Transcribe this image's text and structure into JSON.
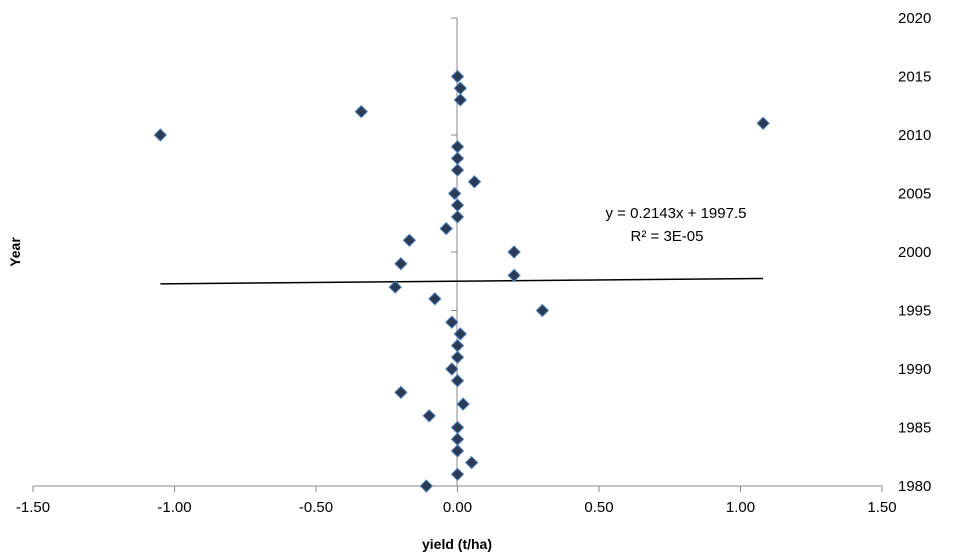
{
  "chart_data": {
    "type": "scatter",
    "title": "",
    "xlabel": "yield (t/ha)",
    "ylabel": "Year",
    "xlim": [
      -1.5,
      1.5
    ],
    "ylim": [
      1980,
      2020
    ],
    "x_ticks": [
      "-1.50",
      "-1.00",
      "-0.50",
      "0.00",
      "0.50",
      "1.00",
      "1.50"
    ],
    "x_tick_values": [
      -1.5,
      -1.0,
      -0.5,
      0.0,
      0.5,
      1.0,
      1.5
    ],
    "y_ticks": [
      "1980",
      "1985",
      "1990",
      "1995",
      "2000",
      "2005",
      "2010",
      "2015",
      "2020"
    ],
    "y_tick_values": [
      1980,
      1985,
      1990,
      1995,
      2000,
      2005,
      2010,
      2015,
      2020
    ],
    "grid": false,
    "marker": "diamond",
    "marker_color": "#2b3a55",
    "marker_edge_color": "#4f81bd",
    "series": [
      {
        "points": [
          {
            "x": -0.11,
            "y": 1980
          },
          {
            "x": 0.0,
            "y": 1981
          },
          {
            "x": 0.05,
            "y": 1982
          },
          {
            "x": 0.0,
            "y": 1983
          },
          {
            "x": 0.0,
            "y": 1984
          },
          {
            "x": 0.0,
            "y": 1985
          },
          {
            "x": -0.1,
            "y": 1986
          },
          {
            "x": 0.02,
            "y": 1987
          },
          {
            "x": -0.2,
            "y": 1988
          },
          {
            "x": 0.0,
            "y": 1989
          },
          {
            "x": -0.02,
            "y": 1990
          },
          {
            "x": 0.0,
            "y": 1991
          },
          {
            "x": 0.0,
            "y": 1992
          },
          {
            "x": 0.01,
            "y": 1993
          },
          {
            "x": -0.02,
            "y": 1994
          },
          {
            "x": 0.3,
            "y": 1995
          },
          {
            "x": -0.08,
            "y": 1996
          },
          {
            "x": -0.22,
            "y": 1997
          },
          {
            "x": 0.2,
            "y": 1998
          },
          {
            "x": -0.2,
            "y": 1999
          },
          {
            "x": 0.2,
            "y": 2000
          },
          {
            "x": -0.17,
            "y": 2001
          },
          {
            "x": -0.04,
            "y": 2002
          },
          {
            "x": 0.0,
            "y": 2003
          },
          {
            "x": 0.0,
            "y": 2004
          },
          {
            "x": -0.01,
            "y": 2005
          },
          {
            "x": 0.06,
            "y": 2006
          },
          {
            "x": 0.0,
            "y": 2007
          },
          {
            "x": 0.0,
            "y": 2008
          },
          {
            "x": 0.0,
            "y": 2009
          },
          {
            "x": -1.05,
            "y": 2010
          },
          {
            "x": 1.08,
            "y": 2011
          },
          {
            "x": -0.34,
            "y": 2012
          },
          {
            "x": 0.01,
            "y": 2013
          },
          {
            "x": 0.01,
            "y": 2014
          },
          {
            "x": 0.0,
            "y": 2015
          }
        ]
      }
    ],
    "trendline": {
      "slope": 0.2143,
      "intercept": 1997.5,
      "x_range": [
        -1.05,
        1.08
      ],
      "color": "#000000",
      "equation": "y = 0.2143x + 1997.5",
      "r_squared": "R² = 3E-05"
    },
    "y_axis_position": "right"
  }
}
